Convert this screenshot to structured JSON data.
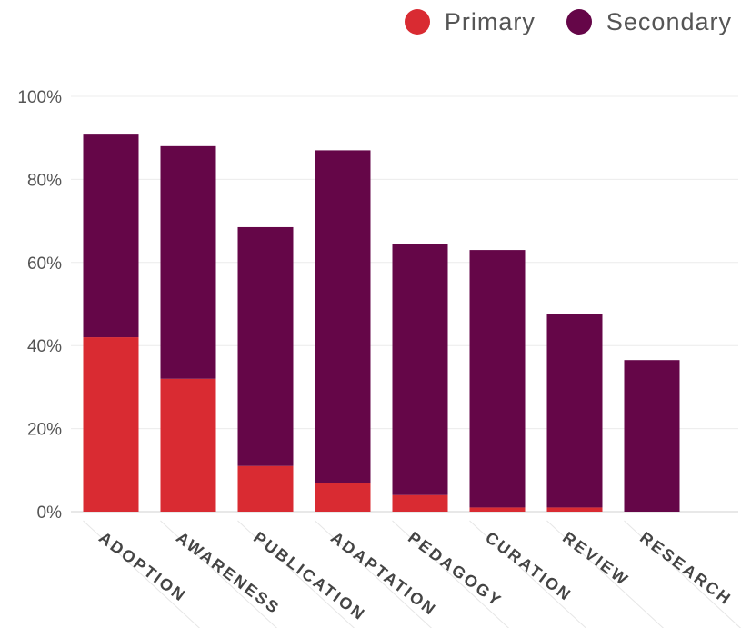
{
  "chart_data": {
    "type": "bar",
    "stacked": true,
    "categories": [
      "ADOPTION",
      "AWARENESS",
      "PUBLICATION",
      "ADAPTATION",
      "PEDAGOGY",
      "CURATION",
      "REVIEW",
      "RESEARCH"
    ],
    "series": [
      {
        "name": "Primary",
        "values": [
          42,
          32,
          11,
          7,
          4,
          1,
          1,
          0
        ],
        "color": "#d92b32"
      },
      {
        "name": "Secondary",
        "values": [
          49,
          56,
          57.5,
          80,
          60.5,
          62,
          46.5,
          36.5
        ],
        "color": "#650648"
      }
    ],
    "ylim": [
      0,
      100
    ],
    "yticks": [
      0,
      20,
      40,
      60,
      80,
      100
    ],
    "ytick_labels": [
      "0%",
      "20%",
      "40%",
      "60%",
      "80%",
      "100%"
    ],
    "grid": true,
    "legend_position": "top-right",
    "title": "",
    "xlabel": "",
    "ylabel": ""
  }
}
